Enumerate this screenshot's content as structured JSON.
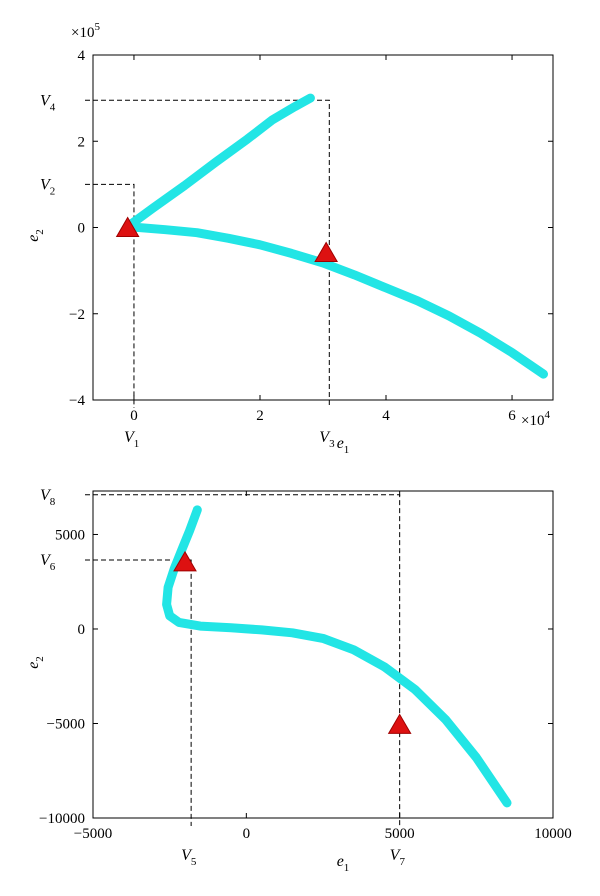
{
  "chart_data": [
    {
      "type": "scatter",
      "title": "",
      "xlabel": {
        "base": "e",
        "sub": "1"
      },
      "ylabel": {
        "base": "e",
        "sub": "2"
      },
      "x_multiplier": {
        "base": "×10",
        "exp": "4"
      },
      "y_multiplier": {
        "base": "×10",
        "exp": "5"
      },
      "xlim": [
        -0.65,
        6.65
      ],
      "ylim": [
        -4,
        4
      ],
      "x_ticks": [
        {
          "value": 0,
          "label": "0"
        },
        {
          "value": 2,
          "label": "2"
        },
        {
          "value": 4,
          "label": "4"
        },
        {
          "value": 6,
          "label": "6"
        }
      ],
      "y_ticks": [
        {
          "value": 4,
          "label": "4"
        },
        {
          "value": 2,
          "label": "2"
        },
        {
          "value": 0,
          "label": "0"
        },
        {
          "value": -2,
          "label": "−2"
        },
        {
          "value": -4,
          "label": "−4"
        }
      ],
      "grid": false,
      "series": [
        {
          "color": "#22e5e5",
          "x": [
            -0.1,
            0.3,
            0.8,
            1.3,
            1.8,
            2.2,
            2.55,
            2.8
          ],
          "y": [
            0.02,
            0.45,
            0.97,
            1.52,
            2.05,
            2.5,
            2.8,
            3.0
          ]
        },
        {
          "color": "#22e5e5",
          "x": [
            -0.1,
            0.5,
            1.0,
            1.5,
            2.0,
            2.5,
            3.0,
            3.5,
            4.0,
            4.5,
            5.0,
            5.5,
            6.0,
            6.5
          ],
          "y": [
            0.02,
            -0.05,
            -0.12,
            -0.25,
            -0.4,
            -0.6,
            -0.82,
            -1.1,
            -1.4,
            -1.7,
            -2.05,
            -2.45,
            -2.9,
            -3.4
          ]
        }
      ],
      "markers": [
        {
          "x": -0.1,
          "y": 0.0,
          "color": "#dd1111"
        },
        {
          "x": 3.05,
          "y": -0.58,
          "color": "#dd1111"
        }
      ],
      "reference_lines": [
        {
          "x": 0.0,
          "y": 1.0,
          "x_label": {
            "base": "V",
            "sub": "1"
          },
          "y_label": {
            "base": "V",
            "sub": "2"
          }
        },
        {
          "x": 3.1,
          "y": 2.95,
          "x_label": {
            "base": "V",
            "sub": "3"
          },
          "y_label": {
            "base": "V",
            "sub": "4"
          }
        }
      ]
    },
    {
      "type": "scatter",
      "title": "",
      "xlabel": {
        "base": "e",
        "sub": "1"
      },
      "ylabel": {
        "base": "e",
        "sub": "2"
      },
      "xlim": [
        -5000,
        10000
      ],
      "ylim": [
        -10000,
        7300
      ],
      "x_ticks": [
        {
          "value": -5000,
          "label": "−5000"
        },
        {
          "value": 0,
          "label": "0"
        },
        {
          "value": 5000,
          "label": "5000"
        },
        {
          "value": 10000,
          "label": "10000"
        }
      ],
      "y_ticks": [
        {
          "value": 5000,
          "label": "5000"
        },
        {
          "value": 0,
          "label": "0"
        },
        {
          "value": -5000,
          "label": "−5000"
        },
        {
          "value": -10000,
          "label": "−10000"
        }
      ],
      "grid": false,
      "series": [
        {
          "color": "#22e5e5",
          "x": [
            -1600,
            -1850,
            -2100,
            -2350,
            -2550,
            -2600,
            -2500,
            -2200,
            -1500,
            -500,
            500,
            1500,
            2500,
            3500,
            4500,
            5500,
            6500,
            7500,
            8500
          ],
          "y": [
            6300,
            5200,
            4200,
            3200,
            2200,
            1300,
            700,
            350,
            150,
            60,
            -50,
            -200,
            -500,
            -1100,
            -2000,
            -3200,
            -4800,
            -6800,
            -9200
          ]
        }
      ],
      "markers": [
        {
          "x": -2000,
          "y": 3550,
          "color": "#dd1111"
        },
        {
          "x": 5000,
          "y": -5050,
          "color": "#dd1111"
        }
      ],
      "reference_lines": [
        {
          "x": -1800,
          "y": 3650,
          "x_label": {
            "base": "V",
            "sub": "5"
          },
          "y_label": {
            "base": "V",
            "sub": "6"
          }
        },
        {
          "x": 5000,
          "y": 7100,
          "x_label": {
            "base": "V",
            "sub": "7"
          },
          "y_label": {
            "base": "V",
            "sub": "8"
          }
        }
      ]
    }
  ]
}
